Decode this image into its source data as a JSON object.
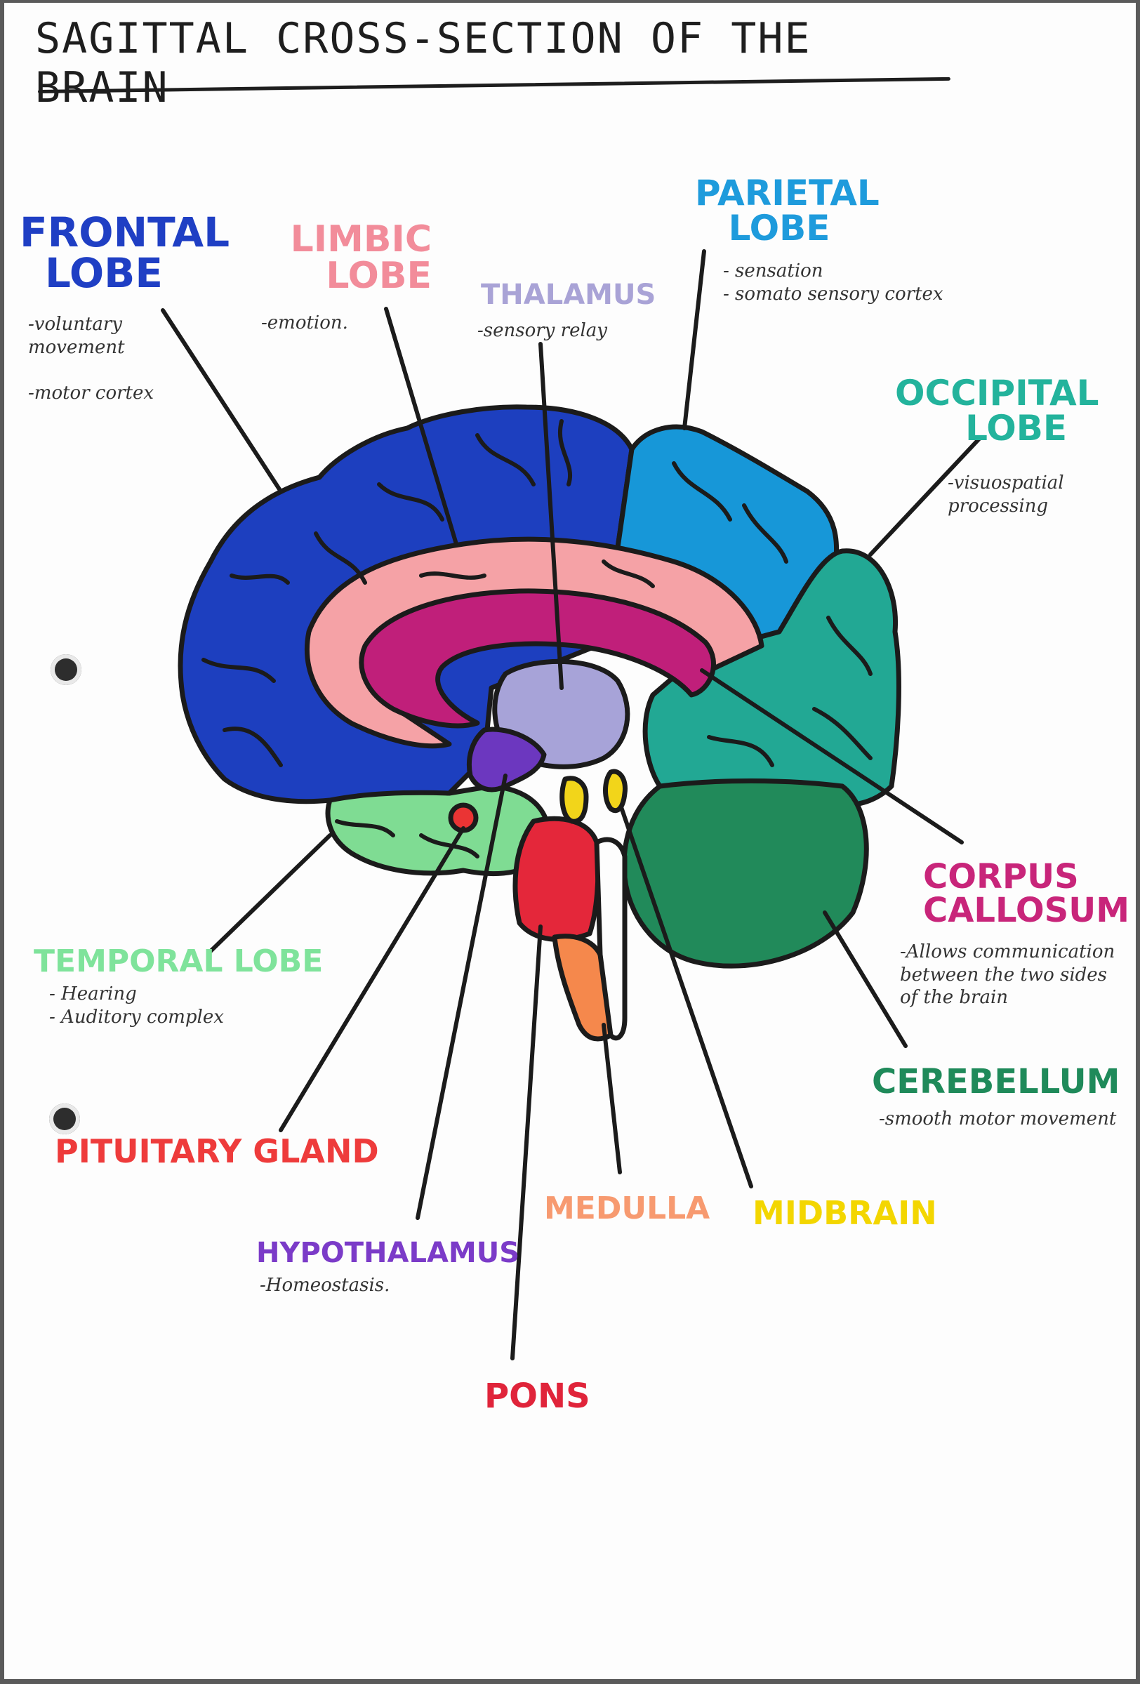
{
  "title": "SAGITTAL CROSS-SECTION OF THE BRAIN",
  "labels": {
    "frontal": {
      "name": "FRONTAL\nLOBE",
      "desc": "-voluntary\nmovement\n\n-motor cortex",
      "color": "#1f3fc4"
    },
    "limbic": {
      "name": "LIMBIC\nLOBE",
      "desc": "-emotion.",
      "color": "#f28c9a"
    },
    "thalamus": {
      "name": "THALAMUS",
      "desc": "-sensory relay",
      "color": "#a9a3d6"
    },
    "parietal": {
      "name": "PARIETAL\nLOBE",
      "desc": "- sensation\n- somato sensory cortex",
      "color": "#1e9bdc"
    },
    "occipital": {
      "name": "OCCIPITAL\nLOBE",
      "desc": "-visuospatial\nprocessing",
      "color": "#23b39c"
    },
    "corpus": {
      "name": "CORPUS\nCALLOSUM",
      "desc": "-Allows communication\nbetween the two sides\nof the brain",
      "color": "#c8257a"
    },
    "temporal": {
      "name": "TEMPORAL LOBE",
      "desc": "- Hearing\n- Auditory complex",
      "color": "#7fe39b"
    },
    "cerebellum": {
      "name": "CEREBELLUM",
      "desc": "-smooth motor movement",
      "color": "#1f8a5a"
    },
    "pituitary": {
      "name": "PITUITARY GLAND",
      "color": "#ee3b3b"
    },
    "hypothalamus": {
      "name": "HYPOTHALAMUS",
      "desc": "-Homeostasis.",
      "color": "#7b3bc8"
    },
    "medulla": {
      "name": "MEDULLA",
      "color": "#f79a70"
    },
    "midbrain": {
      "name": "MIDBRAIN",
      "color": "#f3d600"
    },
    "pons": {
      "name": "PONS",
      "color": "#e0243a"
    }
  },
  "region_colors": {
    "frontal": "#1d3fbf",
    "parietal": "#1797d8",
    "occipital": "#22a894",
    "limbic": "#f5a2a6",
    "corpus_callosum": "#c01f7a",
    "thalamus": "#a7a3d8",
    "hypothalamus": "#6c37bf",
    "pituitary": "#ea3434",
    "temporal": "#7fdc93",
    "cerebellum": "#218a5a",
    "pons": "#e4273a",
    "medulla": "#f5884c",
    "midbrain": "#f2d51a",
    "outline": "#1b1b1b"
  }
}
